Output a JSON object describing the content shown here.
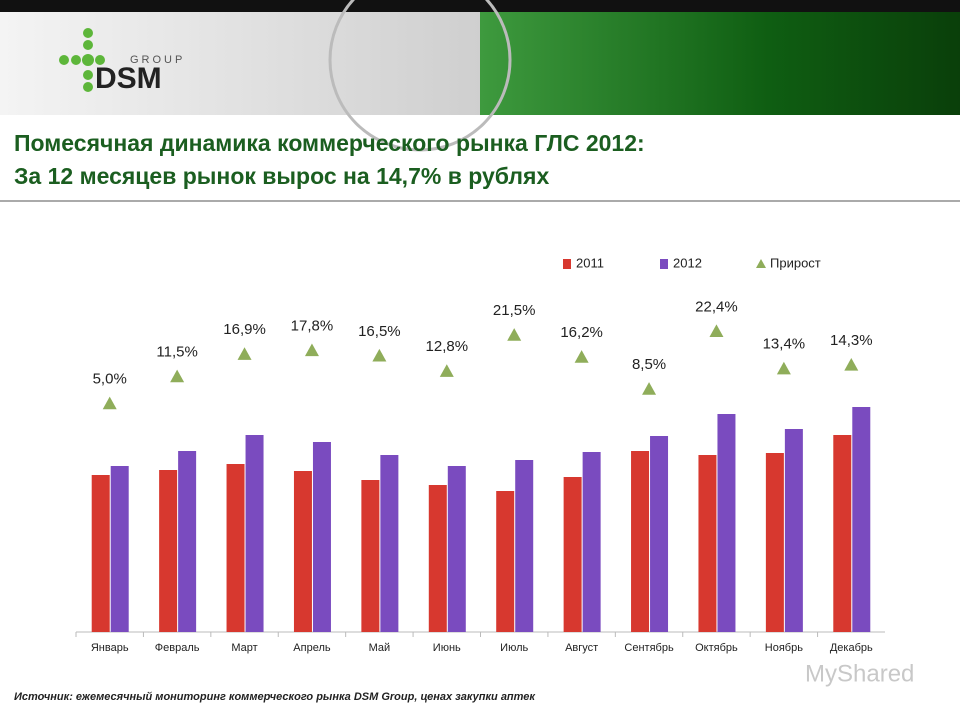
{
  "header": {
    "logo_small": "GROUP",
    "logo_big": "DSM"
  },
  "chart_data": {
    "type": "bar",
    "title": "Помесячная динамика коммерческого рынка ГЛС 2012:",
    "subtitle": "За 12 месяцев рынок вырос на 14,7% в рублях",
    "categories": [
      "Январь",
      "Февраль",
      "Март",
      "Апрель",
      "Май",
      "Июнь",
      "Июль",
      "Август",
      "Сентябрь",
      "Октябрь",
      "Ноябрь",
      "Декабрь"
    ],
    "series": [
      {
        "name": "2011",
        "color": "#d7382f",
        "values": [
          157,
          162,
          168,
          161,
          152,
          147,
          141,
          155,
          181,
          177,
          179,
          197
        ]
      },
      {
        "name": "2012",
        "color": "#7a4bbf",
        "values": [
          166,
          181,
          197,
          190,
          177,
          166,
          172,
          180,
          196,
          218,
          203,
          225
        ]
      },
      {
        "name": "Прирост",
        "color": "#8fad5a",
        "axis": "y2",
        "marker": "triangle",
        "values": [
          5.0,
          11.5,
          16.9,
          17.8,
          16.5,
          12.8,
          21.5,
          16.2,
          8.5,
          22.4,
          13.4,
          14.3
        ],
        "value_labels": [
          "5,0%",
          "11,5%",
          "16,9%",
          "17,8%",
          "16,5%",
          "12,8%",
          "21,5%",
          "16,2%",
          "8,5%",
          "22,4%",
          "13,4%",
          "14,3%"
        ]
      }
    ],
    "ylim": [
      0,
      382
    ],
    "y2lim": [
      -50,
      42
    ],
    "legend": "top",
    "source": "Источник: ежемесячный мониторинг коммерческого рынка DSM Group, ценах закупки аптек",
    "watermark": "MyShared"
  }
}
